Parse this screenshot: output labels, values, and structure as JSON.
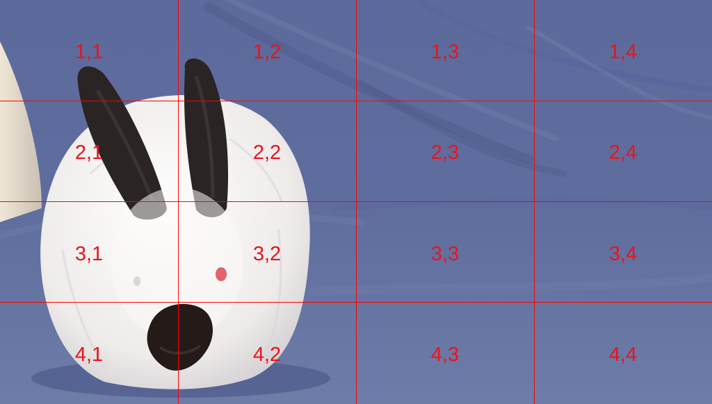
{
  "overlay": {
    "line_color": "#ff0000",
    "label_color": "#e8141c",
    "rows": 4,
    "cols": 4,
    "cells": [
      [
        "1,1",
        "1,2",
        "1,3",
        "1,4"
      ],
      [
        "2,1",
        "2,2",
        "2,3",
        "2,4"
      ],
      [
        "3,1",
        "3,2",
        "3,3",
        "3,4"
      ],
      [
        "4,1",
        "4,2",
        "4,3",
        "4,4"
      ]
    ]
  },
  "scene": {
    "subject": "rabbit-icon",
    "background": "blanket",
    "colors": {
      "blanket": "#5f6d9b",
      "fur": "#f4f1ef",
      "ears": "#2a2424",
      "nose_patch": "#241a18",
      "eye": "#e0646e",
      "wall": "#e7dccb"
    }
  }
}
